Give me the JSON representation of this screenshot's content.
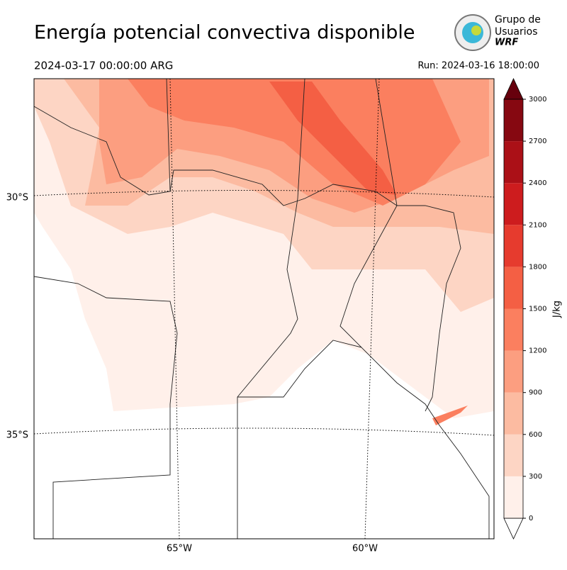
{
  "header": {
    "title": "Energía potencial convectiva disponible",
    "valid_time": "2024-03-17 00:00:00 ARG",
    "run": "Run: 2024-03-16 18:00:00"
  },
  "logo": {
    "line1": "Grupo de",
    "line2": "Usuarios",
    "line3": "WRF"
  },
  "map": {
    "lat_labels": [
      "30°S",
      "35°S"
    ],
    "lon_labels": [
      "65°W",
      "60°W"
    ]
  },
  "colorbar": {
    "label": "J/kg",
    "ticks": [
      0,
      300,
      600,
      900,
      1200,
      1500,
      1800,
      2100,
      2400,
      2700,
      3000
    ],
    "colors": [
      "#fff0ea",
      "#fdd5c4",
      "#fcbba1",
      "#fc9e80",
      "#fb7f5f",
      "#f45f44",
      "#e63b2e",
      "#cd1c1e",
      "#ab1017",
      "#860811"
    ],
    "over_color": "#67000d",
    "under_color": "#ffffff"
  }
}
